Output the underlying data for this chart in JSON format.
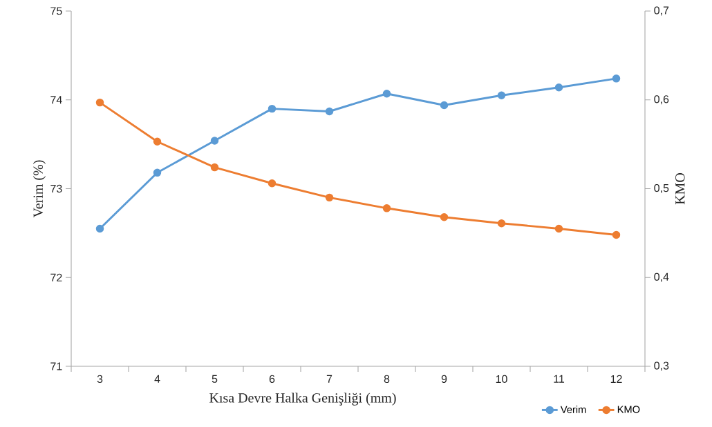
{
  "chart_data": {
    "type": "line",
    "xlabel": "Kısa Devre Halka Genişliği  (mm)",
    "ylabel": "Verim (%)",
    "y2label": "KMO",
    "categories": [
      "3",
      "4",
      "5",
      "6",
      "7",
      "8",
      "9",
      "10",
      "11",
      "12"
    ],
    "series": [
      {
        "name": "Verim",
        "color": "#5b9bd5",
        "values": [
          72.55,
          73.18,
          73.54,
          73.9,
          73.87,
          74.07,
          73.94,
          74.05,
          74.14,
          74.24
        ]
      },
      {
        "name": "KMO",
        "color": "#ed7d31",
        "axis": "y2",
        "values": [
          0.597,
          0.553,
          0.524,
          0.506,
          0.49,
          0.478,
          0.468,
          0.461,
          0.455,
          0.448
        ]
      }
    ],
    "ylim": [
      71,
      75
    ],
    "yticks": [
      71,
      72,
      73,
      74,
      75
    ],
    "y2lim": [
      0.3,
      0.7
    ],
    "y2ticks": [
      {
        "value": 0.3,
        "label": "0,3"
      },
      {
        "value": 0.4,
        "label": "0,4"
      },
      {
        "value": 0.5,
        "label": "0,5"
      },
      {
        "value": 0.6,
        "label": "0,6"
      },
      {
        "value": 0.7,
        "label": "0,7"
      }
    ],
    "legend": "bottom right",
    "marker": "circle",
    "line_style": "solid"
  }
}
